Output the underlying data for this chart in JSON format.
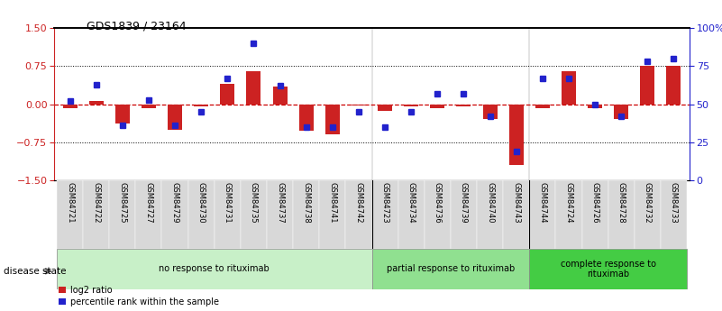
{
  "title": "GDS1839 / 23164",
  "samples": [
    "GSM84721",
    "GSM84722",
    "GSM84725",
    "GSM84727",
    "GSM84729",
    "GSM84730",
    "GSM84731",
    "GSM84735",
    "GSM84737",
    "GSM84738",
    "GSM84741",
    "GSM84742",
    "GSM84723",
    "GSM84734",
    "GSM84736",
    "GSM84739",
    "GSM84740",
    "GSM84743",
    "GSM84744",
    "GSM84724",
    "GSM84726",
    "GSM84728",
    "GSM84732",
    "GSM84733"
  ],
  "log2_ratio": [
    -0.08,
    0.07,
    -0.38,
    -0.08,
    -0.5,
    -0.05,
    0.4,
    0.65,
    0.35,
    -0.52,
    -0.6,
    -0.02,
    -0.14,
    -0.05,
    -0.07,
    -0.05,
    -0.3,
    -1.2,
    -0.07,
    0.65,
    -0.07,
    -0.3,
    0.75,
    0.75
  ],
  "percentile": [
    52,
    63,
    36,
    53,
    36,
    45,
    67,
    90,
    62,
    35,
    35,
    45,
    35,
    45,
    57,
    57,
    42,
    19,
    67,
    67,
    50,
    42,
    78,
    80
  ],
  "groups": [
    {
      "label": "no response to rituximab",
      "start": 0,
      "end": 12,
      "color": "#c8f0c8"
    },
    {
      "label": "partial response to rituximab",
      "start": 12,
      "end": 18,
      "color": "#90e090"
    },
    {
      "label": "complete response to\nrituximab",
      "start": 18,
      "end": 24,
      "color": "#44cc44"
    }
  ],
  "red_color": "#cc2222",
  "blue_color": "#2222cc",
  "zero_line_color": "#cc0000",
  "bar_width": 0.55,
  "title_fontsize": 9
}
